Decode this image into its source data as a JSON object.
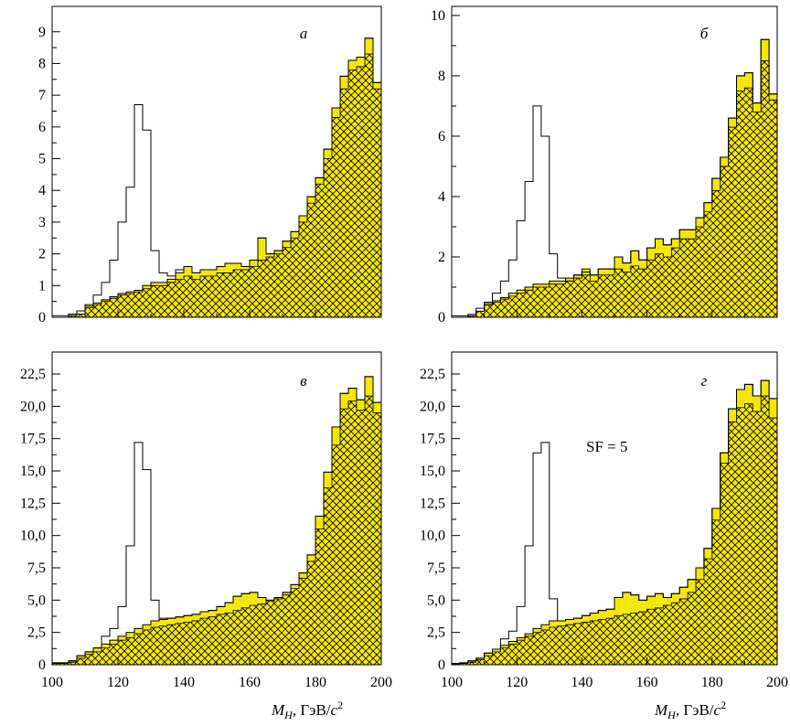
{
  "chart_data": [
    {
      "type": "bar",
      "panel_label": "а",
      "x": [
        100,
        102.5,
        105,
        107.5,
        110,
        112.5,
        115,
        117.5,
        120,
        122.5,
        125,
        127.5,
        130,
        132.5,
        135,
        137.5,
        140,
        142.5,
        145,
        147.5,
        150,
        152.5,
        155,
        157.5,
        160,
        162.5,
        165,
        167.5,
        170,
        172.5,
        175,
        177.5,
        180,
        182.5,
        185,
        187.5,
        190,
        192.5,
        195,
        197.5
      ],
      "xlim": [
        100,
        200
      ],
      "ylim": [
        0,
        9.8
      ],
      "yticks": [
        0,
        1,
        2,
        3,
        4,
        5,
        6,
        7,
        8,
        9
      ],
      "ytick_labels": [
        "0",
        "1",
        "2",
        "3",
        "4",
        "5",
        "6",
        "7",
        "8",
        "9"
      ],
      "xtick_labels": [],
      "series": [
        {
          "values": [
            0,
            0,
            0.05,
            0.1,
            0.3,
            0.4,
            0.5,
            0.6,
            0.7,
            0.75,
            0.8,
            0.9,
            1.0,
            1.0,
            1.1,
            1.2,
            1.3,
            1.2,
            1.3,
            1.3,
            1.4,
            1.4,
            1.5,
            1.5,
            1.6,
            1.8,
            1.9,
            2.0,
            2.2,
            2.5,
            3.0,
            3.6,
            4.2,
            5.0,
            6.3,
            7.2,
            7.8,
            7.9,
            8.3,
            7.2
          ]
        },
        {
          "values": [
            0,
            0,
            0.05,
            0.1,
            0.35,
            0.45,
            0.55,
            0.65,
            0.75,
            0.8,
            0.85,
            1.0,
            1.1,
            1.1,
            1.2,
            1.4,
            1.6,
            1.4,
            1.5,
            1.5,
            1.6,
            1.7,
            1.7,
            1.6,
            1.8,
            2.5,
            2.0,
            2.1,
            2.4,
            2.7,
            3.2,
            3.8,
            4.4,
            5.3,
            6.6,
            7.6,
            8.1,
            8.2,
            8.8,
            7.4
          ]
        },
        {
          "values": [
            0.05,
            0.05,
            0.1,
            0.2,
            0.4,
            0.7,
            1.1,
            1.8,
            3.0,
            4.1,
            6.7,
            5.9,
            2.1,
            1.4,
            1.3,
            1.5,
            1.6,
            1.4,
            1.5,
            1.5,
            1.6,
            1.7,
            1.7,
            1.6,
            1.8,
            2.5,
            2.0,
            2.1,
            2.4,
            2.7,
            3.2,
            3.8,
            4.4,
            5.3,
            6.6,
            7.6,
            8.1,
            8.2,
            8.8,
            7.4
          ]
        }
      ]
    },
    {
      "type": "bar",
      "panel_label": "б",
      "x": [
        100,
        102.5,
        105,
        107.5,
        110,
        112.5,
        115,
        117.5,
        120,
        122.5,
        125,
        127.5,
        130,
        132.5,
        135,
        137.5,
        140,
        142.5,
        145,
        147.5,
        150,
        152.5,
        155,
        157.5,
        160,
        162.5,
        165,
        167.5,
        170,
        172.5,
        175,
        177.5,
        180,
        182.5,
        185,
        187.5,
        190,
        192.5,
        195,
        197.5
      ],
      "xlim": [
        100,
        200
      ],
      "ylim": [
        0,
        10.3
      ],
      "yticks": [
        0,
        2,
        4,
        6,
        8,
        10
      ],
      "ytick_labels": [
        "0",
        "2",
        "4",
        "6",
        "8",
        "10"
      ],
      "xtick_labels": [],
      "series": [
        {
          "values": [
            0,
            0,
            0.05,
            0.2,
            0.4,
            0.5,
            0.6,
            0.7,
            0.8,
            0.9,
            1.0,
            1.0,
            1.1,
            1.1,
            1.2,
            1.3,
            1.4,
            1.2,
            1.4,
            1.4,
            1.6,
            1.5,
            1.7,
            1.6,
            1.9,
            2.1,
            2.0,
            2.3,
            2.6,
            2.6,
            3.0,
            3.5,
            4.2,
            5.0,
            6.3,
            7.5,
            7.6,
            6.8,
            8.5,
            7.2
          ]
        },
        {
          "values": [
            0,
            0,
            0.05,
            0.2,
            0.45,
            0.55,
            0.65,
            0.8,
            0.9,
            1.0,
            1.1,
            1.1,
            1.2,
            1.2,
            1.3,
            1.4,
            1.6,
            1.4,
            1.6,
            1.6,
            2.0,
            1.8,
            2.2,
            1.9,
            2.3,
            2.6,
            2.4,
            2.6,
            2.9,
            2.9,
            3.3,
            3.8,
            4.6,
            5.3,
            6.6,
            8.0,
            8.1,
            7.1,
            9.2,
            7.4
          ]
        },
        {
          "values": [
            0.05,
            0.05,
            0.1,
            0.3,
            0.5,
            0.8,
            1.2,
            1.9,
            3.2,
            4.5,
            7.0,
            6.0,
            2.1,
            1.3,
            1.2,
            1.4,
            1.5,
            1.4,
            1.6,
            1.6,
            2.0,
            1.8,
            2.2,
            1.9,
            2.3,
            2.6,
            2.4,
            2.6,
            2.9,
            2.9,
            3.3,
            3.8,
            4.6,
            5.3,
            6.6,
            8.0,
            8.1,
            7.1,
            9.2,
            7.4
          ]
        }
      ]
    },
    {
      "type": "bar",
      "panel_label": "в",
      "x": [
        100,
        102.5,
        105,
        107.5,
        110,
        112.5,
        115,
        117.5,
        120,
        122.5,
        125,
        127.5,
        130,
        132.5,
        135,
        137.5,
        140,
        142.5,
        145,
        147.5,
        150,
        152.5,
        155,
        157.5,
        160,
        162.5,
        165,
        167.5,
        170,
        172.5,
        175,
        177.5,
        180,
        182.5,
        185,
        187.5,
        190,
        192.5,
        195,
        197.5
      ],
      "xlim": [
        100,
        200
      ],
      "ylim": [
        0,
        24.2
      ],
      "yticks": [
        0,
        2.5,
        5,
        7.5,
        10,
        12.5,
        15,
        17.5,
        20,
        22.5
      ],
      "ytick_labels": [
        "0",
        "2,5",
        "5,0",
        "7,5",
        "10,0",
        "12,5",
        "15,0",
        "17,5",
        "20,0",
        "22,5"
      ],
      "xtick_labels": [
        "100",
        "120",
        "140",
        "160",
        "180",
        "200"
      ],
      "series": [
        {
          "values": [
            0.1,
            0.1,
            0.2,
            0.5,
            0.8,
            1.0,
            1.3,
            1.6,
            1.9,
            2.1,
            2.4,
            2.7,
            2.9,
            3.0,
            3.1,
            3.2,
            3.3,
            3.4,
            3.6,
            3.7,
            3.9,
            4.0,
            4.2,
            4.4,
            4.6,
            4.7,
            4.9,
            5.1,
            5.4,
            5.9,
            6.7,
            8.0,
            10.5,
            13.7,
            17.0,
            19.8,
            20.4,
            19.7,
            20.8,
            19.5
          ]
        },
        {
          "values": [
            0.15,
            0.15,
            0.3,
            0.7,
            1.0,
            1.3,
            1.6,
            1.9,
            2.2,
            2.5,
            2.8,
            3.1,
            3.4,
            3.5,
            3.6,
            3.7,
            3.8,
            3.9,
            4.1,
            4.2,
            4.5,
            4.8,
            5.3,
            5.5,
            5.6,
            5.2,
            5.0,
            5.2,
            5.6,
            6.2,
            7.1,
            8.5,
            11.5,
            14.9,
            18.4,
            21.0,
            21.4,
            20.5,
            22.3,
            20.3
          ]
        },
        {
          "values": [
            0.15,
            0.15,
            0.3,
            0.7,
            1.0,
            1.3,
            2.2,
            2.8,
            4.5,
            9.2,
            17.2,
            15.1,
            5.0,
            3.6,
            3.6,
            3.7,
            3.8,
            3.9,
            4.1,
            4.2,
            4.5,
            4.8,
            5.3,
            5.5,
            5.6,
            5.2,
            5.0,
            5.2,
            5.6,
            6.2,
            7.1,
            8.5,
            11.5,
            14.9,
            18.4,
            21.0,
            21.4,
            20.5,
            22.3,
            20.3
          ]
        }
      ]
    },
    {
      "type": "bar",
      "panel_label": "г",
      "annotation": "SF = 5",
      "x": [
        100,
        102.5,
        105,
        107.5,
        110,
        112.5,
        115,
        117.5,
        120,
        122.5,
        125,
        127.5,
        130,
        132.5,
        135,
        137.5,
        140,
        142.5,
        145,
        147.5,
        150,
        152.5,
        155,
        157.5,
        160,
        162.5,
        165,
        167.5,
        170,
        172.5,
        175,
        177.5,
        180,
        182.5,
        185,
        187.5,
        190,
        192.5,
        195,
        197.5
      ],
      "xlim": [
        100,
        200
      ],
      "ylim": [
        0,
        24.2
      ],
      "yticks": [
        0,
        2.5,
        5,
        7.5,
        10,
        12.5,
        15,
        17.5,
        20,
        22.5
      ],
      "ytick_labels": [
        "0",
        "2,5",
        "5,0",
        "7,5",
        "10,0",
        "12,5",
        "15,0",
        "17,5",
        "20,0",
        "22,5"
      ],
      "xtick_labels": [
        "100",
        "120",
        "140",
        "160",
        "180",
        "200"
      ],
      "series": [
        {
          "values": [
            0.05,
            0.1,
            0.2,
            0.4,
            0.7,
            1.0,
            1.3,
            1.6,
            1.9,
            2.2,
            2.5,
            2.7,
            2.9,
            3.0,
            3.1,
            3.2,
            3.3,
            3.4,
            3.5,
            3.6,
            3.8,
            3.9,
            4.0,
            4.1,
            4.3,
            4.4,
            4.6,
            4.8,
            5.1,
            5.6,
            6.6,
            8.2,
            11.2,
            15.6,
            18.8,
            19.9,
            20.2,
            19.6,
            20.8,
            19.1
          ]
        },
        {
          "values": [
            0.1,
            0.15,
            0.3,
            0.5,
            0.9,
            1.2,
            1.5,
            1.8,
            2.1,
            2.4,
            2.8,
            3.1,
            3.4,
            3.4,
            3.5,
            3.6,
            3.8,
            4.0,
            4.2,
            4.3,
            5.2,
            5.6,
            5.4,
            5.0,
            5.3,
            5.5,
            5.2,
            5.5,
            6.0,
            6.6,
            7.5,
            9.0,
            12.1,
            16.4,
            19.8,
            21.3,
            21.7,
            20.8,
            22.0,
            20.6
          ]
        },
        {
          "values": [
            0.1,
            0.15,
            0.3,
            0.5,
            0.9,
            1.2,
            2.0,
            2.6,
            4.5,
            9.2,
            16.4,
            17.2,
            5.1,
            3.4,
            3.5,
            3.6,
            3.8,
            4.0,
            4.2,
            4.3,
            5.2,
            5.6,
            5.4,
            5.0,
            5.3,
            5.5,
            5.2,
            5.5,
            6.0,
            6.6,
            7.5,
            9.0,
            12.1,
            16.4,
            19.8,
            21.3,
            21.7,
            20.8,
            22.0,
            20.6
          ]
        }
      ]
    }
  ],
  "x_axis_title": {
    "var": "M",
    "sub": "H",
    "unit": ", ГэВ/",
    "c": "c",
    "sup": "2"
  },
  "colors": {
    "fill": "#f4e800",
    "hatch": "#000000",
    "axes": "#000000"
  }
}
